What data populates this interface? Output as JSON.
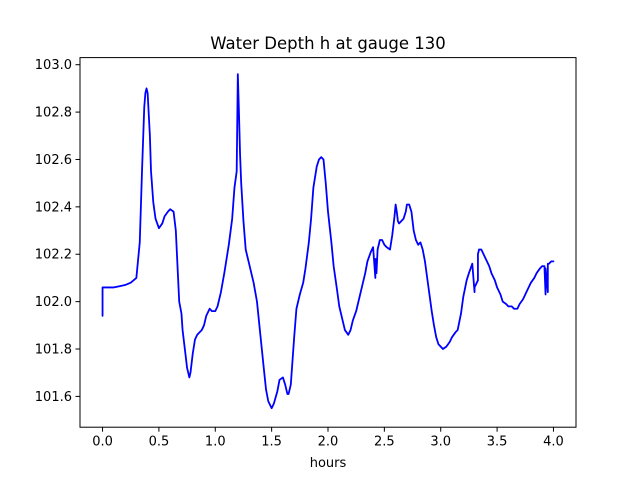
{
  "chart_data": {
    "type": "line",
    "title": "Water Depth h at gauge 130",
    "xlabel": "hours",
    "ylabel": "",
    "xlim": [
      -0.2,
      4.2
    ],
    "ylim": [
      101.47,
      103.03
    ],
    "xticks": [
      0.0,
      0.5,
      1.0,
      1.5,
      2.0,
      2.5,
      3.0,
      3.5,
      4.0
    ],
    "xtick_labels": [
      "0.0",
      "0.5",
      "1.0",
      "1.5",
      "2.0",
      "2.5",
      "3.0",
      "3.5",
      "4.0"
    ],
    "yticks": [
      101.6,
      101.8,
      102.0,
      102.2,
      102.4,
      102.6,
      102.8,
      103.0
    ],
    "ytick_labels": [
      "101.6",
      "101.8",
      "102.0",
      "102.2",
      "102.4",
      "102.6",
      "102.8",
      "103.0"
    ],
    "grid": false,
    "line_color": "#0000ff",
    "series": [
      {
        "x": [
          0.0,
          0.0,
          0.05,
          0.1,
          0.15,
          0.2,
          0.25,
          0.3,
          0.33,
          0.35,
          0.37,
          0.38,
          0.39,
          0.4,
          0.42,
          0.43,
          0.45,
          0.47,
          0.5,
          0.53,
          0.55,
          0.58,
          0.6,
          0.63,
          0.65,
          0.67,
          0.68,
          0.7,
          0.71,
          0.73,
          0.75,
          0.76,
          0.77,
          0.78,
          0.8,
          0.82,
          0.84,
          0.86,
          0.88,
          0.9,
          0.92,
          0.94,
          0.95,
          0.97,
          1.0,
          1.02,
          1.05,
          1.08,
          1.1,
          1.12,
          1.15,
          1.17,
          1.19,
          1.2,
          1.21,
          1.22,
          1.23,
          1.25,
          1.27,
          1.29,
          1.3,
          1.32,
          1.34,
          1.37,
          1.4,
          1.43,
          1.45,
          1.47,
          1.5,
          1.52,
          1.55,
          1.57,
          1.6,
          1.62,
          1.64,
          1.65,
          1.67,
          1.7,
          1.72,
          1.75,
          1.78,
          1.8,
          1.83,
          1.85,
          1.87,
          1.9,
          1.92,
          1.94,
          1.96,
          1.98,
          2.0,
          2.03,
          2.05,
          2.08,
          2.1,
          2.13,
          2.15,
          2.18,
          2.2,
          2.22,
          2.25,
          2.28,
          2.3,
          2.33,
          2.35,
          2.38,
          2.4,
          2.42,
          2.42,
          2.43,
          2.43,
          2.44,
          2.46,
          2.48,
          2.5,
          2.52,
          2.55,
          2.57,
          2.59,
          2.6,
          2.61,
          2.62,
          2.63,
          2.65,
          2.67,
          2.69,
          2.7,
          2.72,
          2.74,
          2.76,
          2.78,
          2.8,
          2.82,
          2.84,
          2.86,
          2.88,
          2.9,
          2.92,
          2.94,
          2.96,
          2.98,
          3.0,
          3.02,
          3.05,
          3.08,
          3.1,
          3.13,
          3.15,
          3.18,
          3.2,
          3.23,
          3.25,
          3.28,
          3.3,
          3.3,
          3.32,
          3.33,
          3.33,
          3.34,
          3.36,
          3.38,
          3.4,
          3.43,
          3.45,
          3.48,
          3.5,
          3.53,
          3.55,
          3.58,
          3.6,
          3.63,
          3.65,
          3.68,
          3.7,
          3.73,
          3.75,
          3.78,
          3.8,
          3.83,
          3.85,
          3.88,
          3.9,
          3.92,
          3.93,
          3.93,
          3.95,
          3.95,
          3.96,
          3.98,
          4.0
        ],
        "y": [
          101.94,
          102.06,
          102.06,
          102.06,
          102.065,
          102.07,
          102.08,
          102.1,
          102.25,
          102.55,
          102.82,
          102.88,
          102.9,
          102.88,
          102.7,
          102.55,
          102.42,
          102.35,
          102.31,
          102.33,
          102.36,
          102.38,
          102.39,
          102.38,
          102.3,
          102.1,
          102.0,
          101.95,
          101.88,
          101.8,
          101.72,
          101.7,
          101.68,
          101.7,
          101.78,
          101.84,
          101.86,
          101.87,
          101.88,
          101.9,
          101.94,
          101.96,
          101.97,
          101.96,
          101.96,
          101.98,
          102.04,
          102.12,
          102.18,
          102.24,
          102.35,
          102.48,
          102.55,
          102.96,
          102.8,
          102.62,
          102.5,
          102.34,
          102.22,
          102.18,
          102.16,
          102.12,
          102.08,
          102.0,
          101.86,
          101.72,
          101.63,
          101.58,
          101.55,
          101.57,
          101.62,
          101.67,
          101.68,
          101.65,
          101.61,
          101.61,
          101.65,
          101.85,
          101.97,
          102.03,
          102.08,
          102.14,
          102.25,
          102.35,
          102.48,
          102.57,
          102.6,
          102.61,
          102.6,
          102.5,
          102.38,
          102.25,
          102.15,
          102.05,
          101.98,
          101.92,
          101.88,
          101.86,
          101.88,
          101.92,
          101.96,
          102.02,
          102.06,
          102.12,
          102.17,
          102.21,
          102.23,
          102.1,
          102.18,
          102.18,
          102.12,
          102.22,
          102.26,
          102.26,
          102.24,
          102.23,
          102.22,
          102.28,
          102.36,
          102.41,
          102.38,
          102.34,
          102.33,
          102.34,
          102.35,
          102.38,
          102.41,
          102.41,
          102.38,
          102.3,
          102.26,
          102.24,
          102.25,
          102.22,
          102.17,
          102.1,
          102.03,
          101.96,
          101.9,
          101.85,
          101.82,
          101.81,
          101.8,
          101.81,
          101.83,
          101.85,
          101.87,
          101.88,
          101.95,
          102.02,
          102.09,
          102.12,
          102.16,
          102.04,
          102.06,
          102.08,
          102.09,
          102.2,
          102.22,
          102.22,
          102.2,
          102.18,
          102.15,
          102.12,
          102.09,
          102.06,
          102.03,
          102.0,
          101.99,
          101.98,
          101.98,
          101.97,
          101.97,
          101.99,
          102.01,
          102.03,
          102.06,
          102.08,
          102.1,
          102.12,
          102.14,
          102.15,
          102.15,
          102.03,
          102.14,
          102.04,
          102.16,
          102.16,
          102.17,
          102.17
        ]
      }
    ]
  }
}
